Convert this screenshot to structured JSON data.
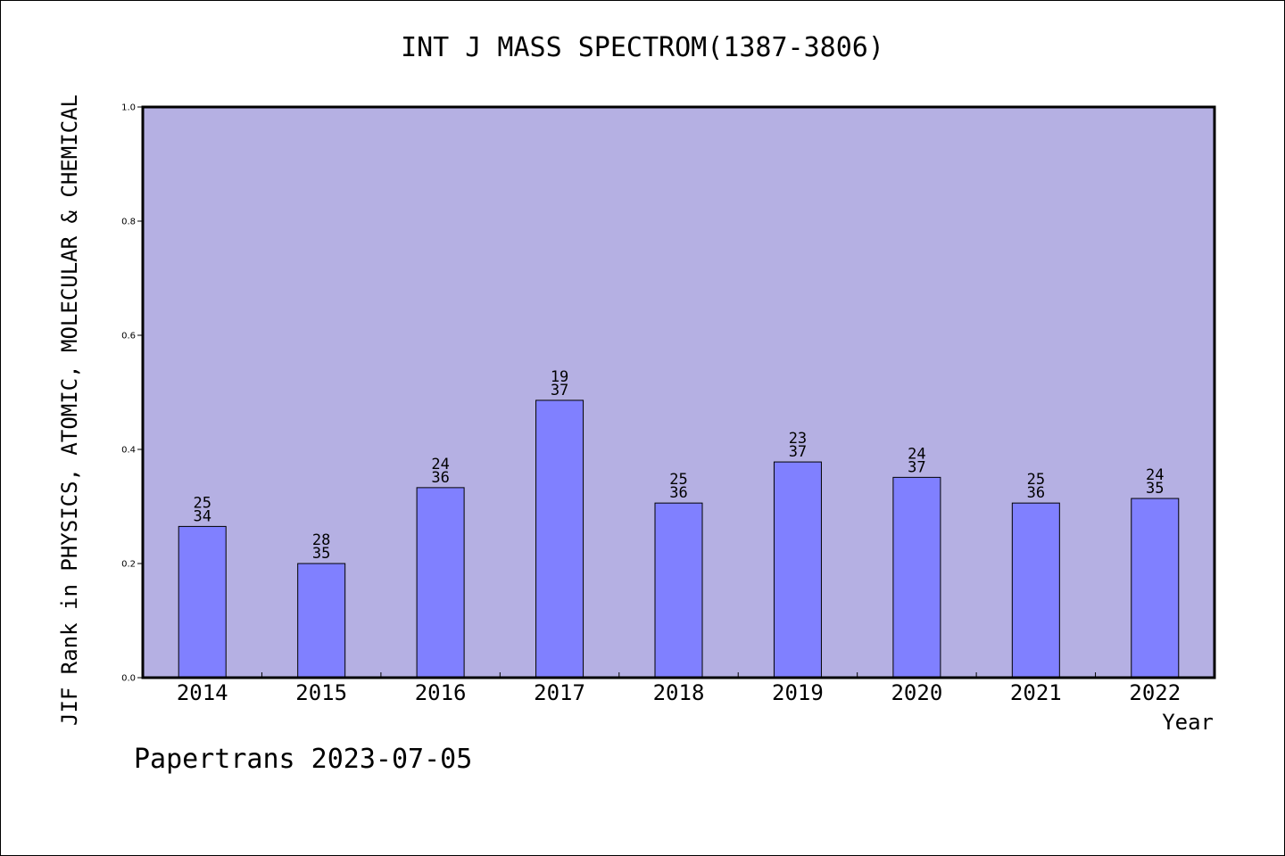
{
  "chart_data": {
    "type": "bar",
    "title": "INT J MASS SPECTROM(1387-3806)",
    "ylabel": "JIF Rank in PHYSICS, ATOMIC, MOLECULAR & CHEMICAL",
    "xlabel": "Year",
    "ylim": [
      0,
      1.0
    ],
    "yticks": [
      "0.0",
      "0.2",
      "0.4",
      "0.6",
      "0.8",
      "1.0"
    ],
    "categories": [
      "2014",
      "2015",
      "2016",
      "2017",
      "2018",
      "2019",
      "2020",
      "2021",
      "2022"
    ],
    "values": [
      0.265,
      0.2,
      0.333,
      0.486,
      0.306,
      0.378,
      0.351,
      0.306,
      0.314
    ],
    "rank": [
      "25",
      "28",
      "24",
      "19",
      "25",
      "23",
      "24",
      "25",
      "24"
    ],
    "total": [
      "34",
      "35",
      "36",
      "37",
      "36",
      "37",
      "37",
      "36",
      "35"
    ],
    "grid": false,
    "colors": {
      "plot_bg": "#b5b0e3",
      "bar": "#8080ff",
      "axis": "#000000"
    }
  },
  "footnote": "Papertrans 2023-07-05"
}
